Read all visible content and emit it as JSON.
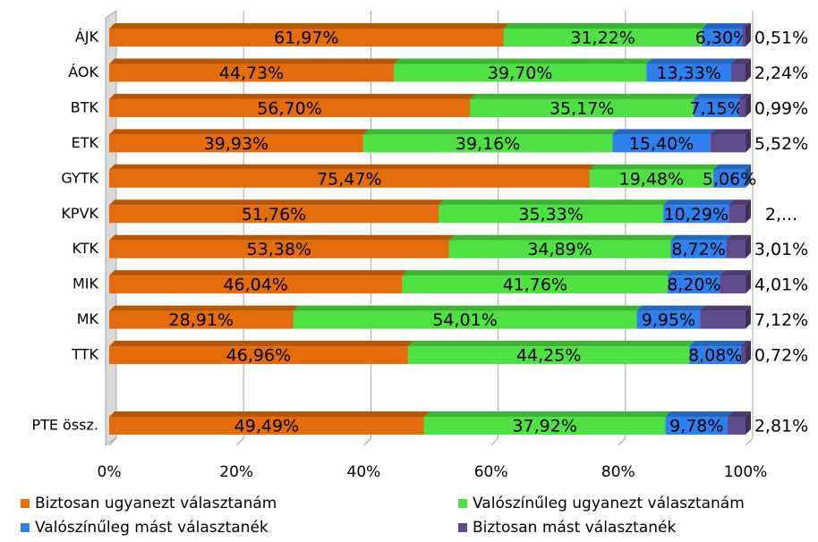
{
  "chart_data": {
    "type": "stacked_bar_horizontal",
    "categories": [
      "ÁJK",
      "ÁOK",
      "BTK",
      "ETK",
      "GYTK",
      "KPVK",
      "KTK",
      "MIK",
      "MK",
      "TTK",
      null,
      "PTE össz."
    ],
    "series": [
      {
        "name": "Biztosan ugyanezt választanám",
        "color": "#e46c0a",
        "values": [
          61.97,
          44.73,
          56.7,
          39.93,
          75.47,
          51.76,
          53.38,
          46.04,
          28.91,
          46.96,
          null,
          49.49
        ],
        "value_labels": [
          "61,97%",
          "44,73%",
          "56,70%",
          "39,93%",
          "75,47%",
          "51,76%",
          "53,38%",
          "46,04%",
          "28,91%",
          "46,96%",
          null,
          "49,49%"
        ]
      },
      {
        "name": "Valószínűleg ugyanezt választanám",
        "color": "#4fe043",
        "values": [
          31.22,
          39.7,
          35.17,
          39.16,
          19.48,
          35.33,
          34.89,
          41.76,
          54.01,
          44.25,
          null,
          37.92
        ],
        "value_labels": [
          "31,22%",
          "39,70%",
          "35,17%",
          "39,16%",
          "19,48%",
          "35,33%",
          "34,89%",
          "41,76%",
          "54,01%",
          "44,25%",
          null,
          "37,92%"
        ]
      },
      {
        "name": "Valószínűleg mást választanék",
        "color": "#2f80ee",
        "values": [
          6.3,
          13.33,
          7.15,
          15.4,
          5.06,
          10.29,
          8.72,
          8.2,
          9.95,
          8.08,
          null,
          9.78
        ],
        "value_labels": [
          "6,30%",
          "13,33%",
          "7,15%",
          "15,40%",
          "5,06%",
          "10,29%",
          "8,72%",
          "8,20%",
          "9,95%",
          "8,08%",
          null,
          "9,78%"
        ]
      },
      {
        "name": "Biztosan mást választanék",
        "color": "#604a8b",
        "values": [
          0.51,
          2.24,
          0.99,
          5.52,
          null,
          2.62,
          3.01,
          4.01,
          7.12,
          0.72,
          null,
          2.81
        ],
        "value_labels": [
          "0,51%",
          "2,24%",
          "0,99%",
          "5,52%",
          null,
          "2,...",
          "3,01%",
          "4,01%",
          "7,12%",
          "0,72%",
          null,
          "2,81%"
        ]
      }
    ],
    "xlim": [
      0,
      100
    ],
    "xticks": [
      {
        "value": 0,
        "label": "0%"
      },
      {
        "value": 20,
        "label": "20%"
      },
      {
        "value": 40,
        "label": "40%"
      },
      {
        "value": 60,
        "label": "60%"
      },
      {
        "value": 80,
        "label": "80%"
      },
      {
        "value": 100,
        "label": "100%"
      }
    ],
    "grid": true,
    "legend": "bottom"
  }
}
